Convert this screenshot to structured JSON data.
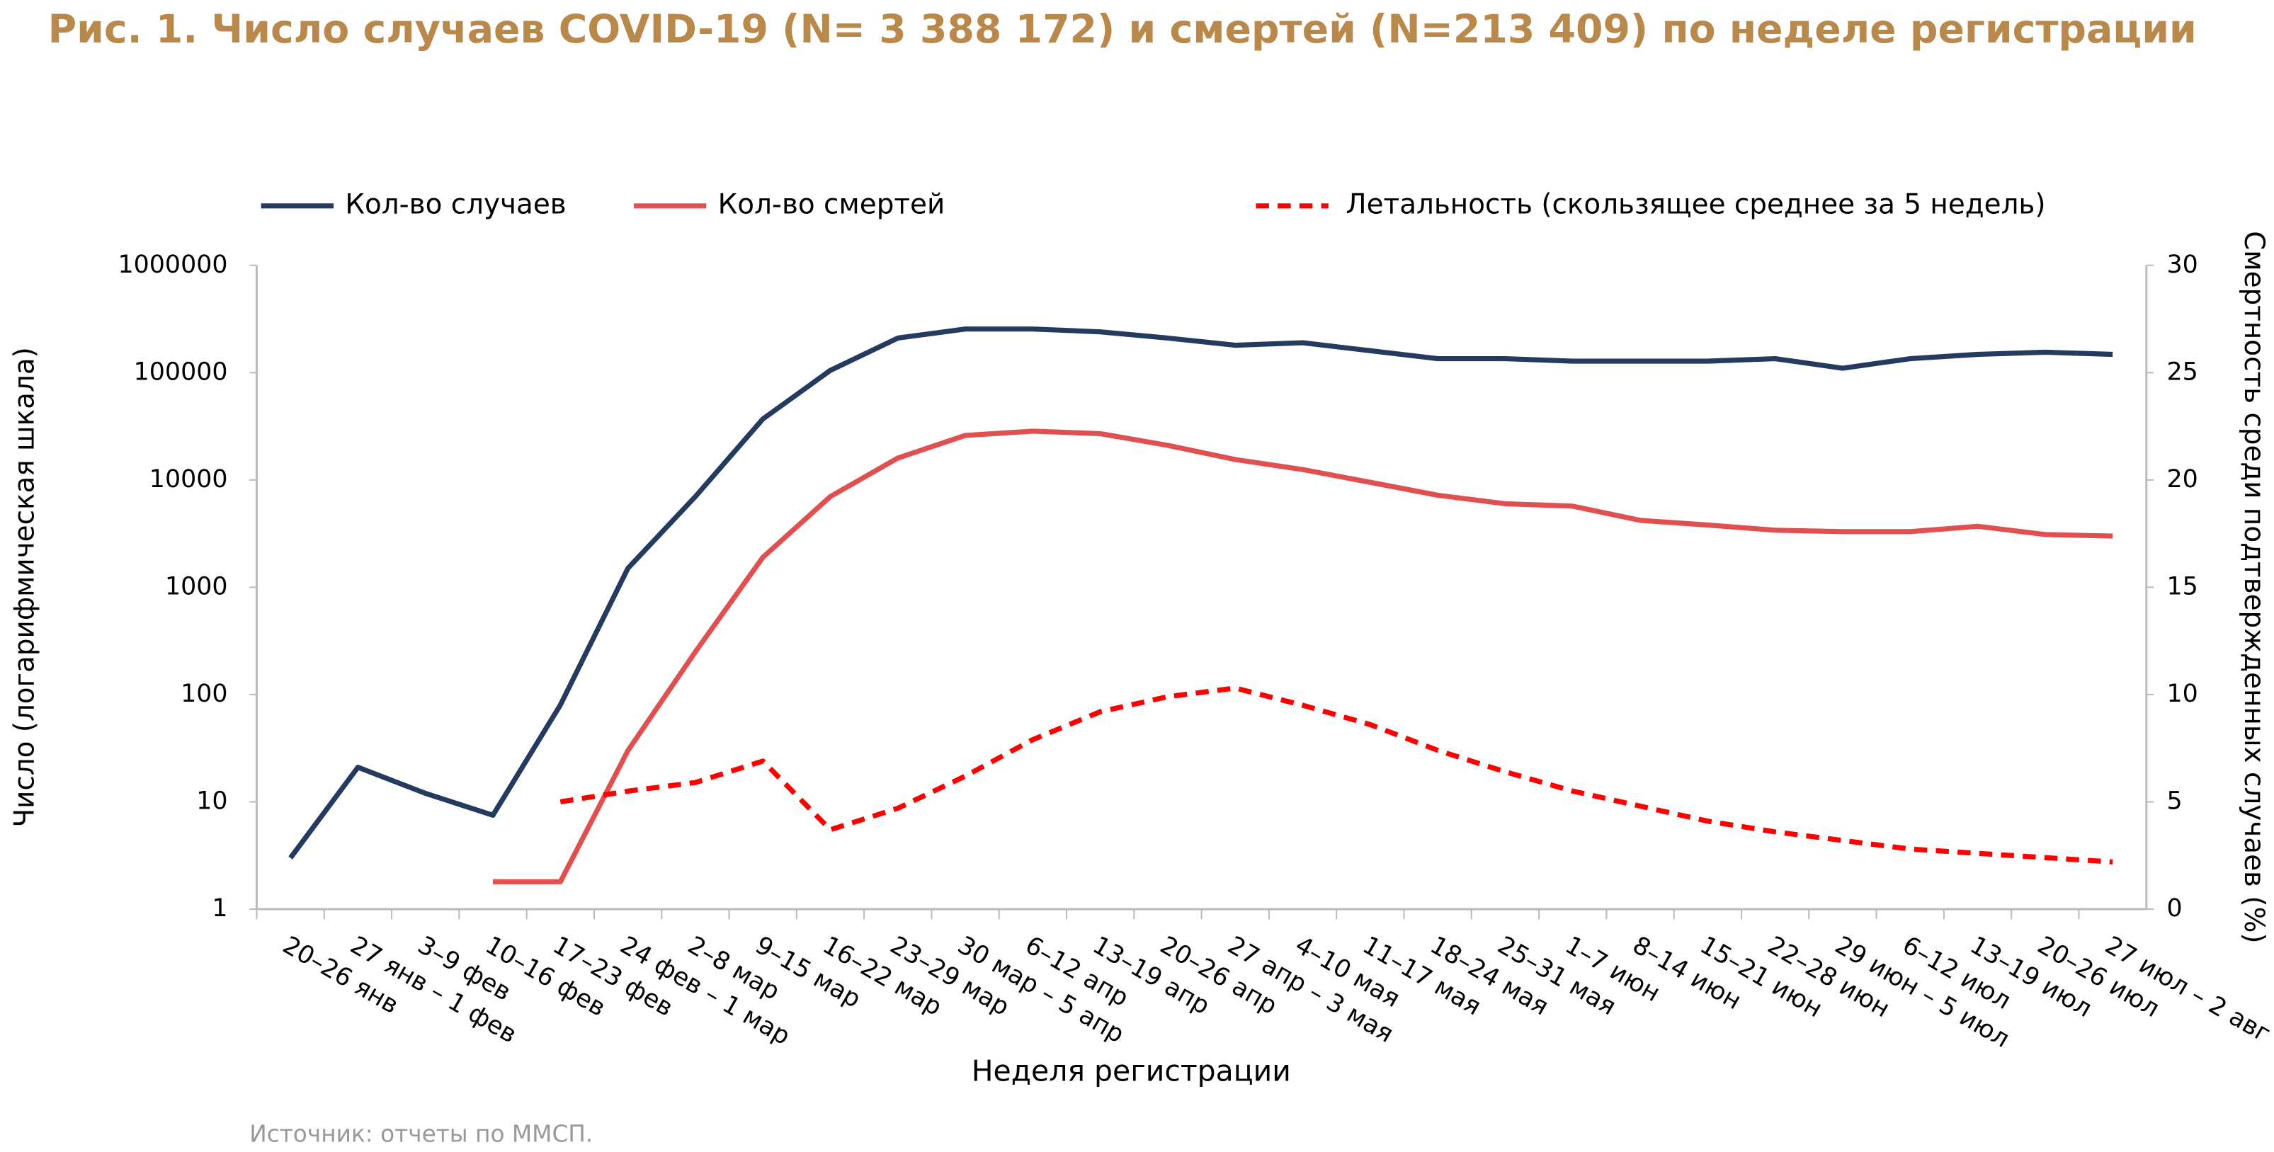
{
  "chart_data": {
    "type": "line",
    "title": "Рис. 1. Число случаев COVID-19 (N= 3 388 172) и смертей (N=213 409) по неделе регистрации",
    "x_label": "Неделя регистрации",
    "y_label": "Число (логарифмическая шкала)",
    "y2_label": "Смертность среди подтвержденных случаев (%)",
    "source": "Источник: отчеты по ММСП.",
    "categories": [
      "20–26 янв",
      "27 янв – 1 фев",
      "3–9 фев",
      "10–16 фев",
      "17–23 фев",
      "24 фев – 1 мар",
      "2–8 мар",
      "9–15 мар",
      "16–22 мар",
      "23–29 мар",
      "30 мар – 5 апр",
      "6–12 апр",
      "13–19 апр",
      "20–26 апр",
      "27 апр – 3 мая",
      "4–10 мая",
      "11–17 мая",
      "18–24 мая",
      "25–31 мая",
      "1–7 июн",
      "8–14 июн",
      "15–21 июн",
      "22–28 июн",
      "29 июн – 5 июл",
      "6–12 июл",
      "13–19 июл",
      "20–26 июл",
      "27 июл – 2 авг"
    ],
    "series": [
      {
        "name": "Кол-во случаев",
        "color": "#243a5e",
        "line_style": "solid",
        "values": [
          3,
          21,
          12,
          7.5,
          80,
          1500,
          7000,
          37000,
          105000,
          210000,
          255000,
          255000,
          240000,
          210000,
          180000,
          190000,
          160000,
          135000,
          135000,
          128000,
          128000,
          128000,
          135000,
          110000,
          135000,
          148000,
          155000,
          148000
        ]
      },
      {
        "name": "Кол-во смертей",
        "color": "#e05050",
        "line_style": "solid",
        "values": [
          null,
          null,
          null,
          1.8,
          1.8,
          30,
          250,
          1900,
          7000,
          16000,
          26000,
          28500,
          27000,
          21000,
          15500,
          12500,
          9500,
          7200,
          6000,
          5700,
          4200,
          3800,
          3400,
          3300,
          3300,
          3700,
          3100,
          3000
        ]
      },
      {
        "name": "Летальность (скользящее среднее за 5 недель)",
        "color": "#ff0000",
        "line_style": "dashed",
        "axis": "y2",
        "values": [
          null,
          null,
          null,
          null,
          5.0,
          5.5,
          5.9,
          6.9,
          3.7,
          4.7,
          6.2,
          7.9,
          9.2,
          9.9,
          10.3,
          9.5,
          8.6,
          7.4,
          6.4,
          5.5,
          4.8,
          4.1,
          3.6,
          3.2,
          2.8,
          2.6,
          2.4,
          2.2
        ]
      }
    ],
    "y_scale": "log",
    "ylim": [
      1,
      1000000
    ],
    "yticks": [
      1,
      10,
      100,
      1000,
      10000,
      100000,
      1000000
    ],
    "y2lim": [
      0,
      30
    ],
    "y2ticks": [
      0,
      5,
      10,
      15,
      20,
      25,
      30
    ],
    "grid": false,
    "legend": "top"
  }
}
